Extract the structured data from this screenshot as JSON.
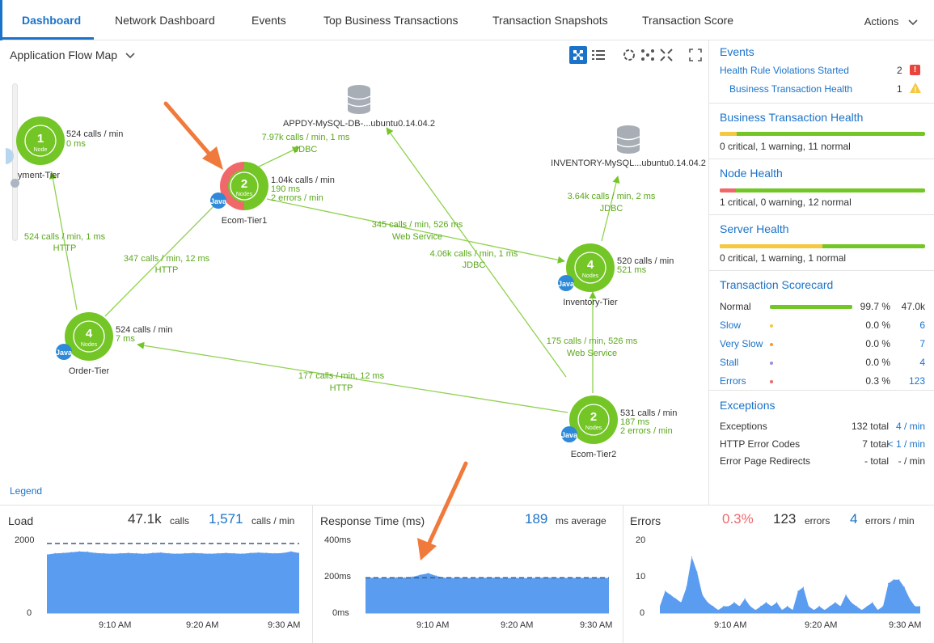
{
  "tabs": [
    {
      "label": "Dashboard",
      "active": true
    },
    {
      "label": "Network Dashboard"
    },
    {
      "label": "Events"
    },
    {
      "label": "Top Business Transactions"
    },
    {
      "label": "Transaction Snapshots"
    },
    {
      "label": "Transaction Score"
    }
  ],
  "actions_label": "Actions",
  "flow_map": {
    "title": "Application Flow Map",
    "legend": "Legend",
    "nodes": [
      {
        "id": "payment",
        "name": "yment-Tier",
        "count": "1",
        "unit": "Node",
        "stats": [
          "524 calls / min",
          "0 ms"
        ]
      },
      {
        "id": "ecom1",
        "name": "Ecom-Tier1",
        "count": "2",
        "unit": "Nodes",
        "stats": [
          "1.04k calls / min",
          "190 ms",
          "2 errors / min"
        ],
        "java": "Java"
      },
      {
        "id": "order",
        "name": "Order-Tier",
        "count": "4",
        "unit": "Nodes",
        "stats": [
          "524 calls / min",
          "7 ms"
        ],
        "java": "Java"
      },
      {
        "id": "inventory",
        "name": "Inventory-Tier",
        "count": "4",
        "unit": "Nodes",
        "stats": [
          "520 calls / min",
          "521 ms"
        ],
        "java": "Java"
      },
      {
        "id": "ecom2",
        "name": "Ecom-Tier2",
        "count": "2",
        "unit": "Nodes",
        "stats": [
          "531 calls / min",
          "187 ms",
          "2 errors / min"
        ],
        "java": "Java"
      }
    ],
    "databases": [
      {
        "id": "appdy",
        "name": "APPDY-MySQL-DB-...ubuntu0.14.04.2"
      },
      {
        "id": "inv",
        "name": "INVENTORY-MySQL...ubuntu0.14.04.2"
      }
    ],
    "edges": [
      {
        "id": "e1",
        "label": "7.97k calls / min, 1 ms",
        "protocol": "JDBC"
      },
      {
        "id": "e2",
        "label": "524 calls / min, 1 ms",
        "protocol": "HTTP"
      },
      {
        "id": "e3",
        "label": "347 calls / min, 12 ms",
        "protocol": "HTTP"
      },
      {
        "id": "e4",
        "label": "345 calls / min, 526 ms",
        "protocol": "Web Service"
      },
      {
        "id": "e5",
        "label": "4.06k calls / min, 1 ms",
        "protocol": "JDBC"
      },
      {
        "id": "e6",
        "label": "3.64k calls / min, 2 ms",
        "protocol": "JDBC"
      },
      {
        "id": "e7",
        "label": "175 calls / min, 526 ms",
        "protocol": "Web Service"
      },
      {
        "id": "e8",
        "label": "177 calls / min, 12 ms",
        "protocol": "HTTP"
      }
    ]
  },
  "events": {
    "title": "Events",
    "rows": [
      {
        "label": "Health Rule Violations Started",
        "count": "2"
      },
      {
        "label": "Business Transaction Health",
        "count": "1"
      }
    ]
  },
  "bt_health": {
    "title": "Business Transaction Health",
    "summary": "0 critical, 1 warning, 11 normal",
    "critical": 0,
    "warning": 1,
    "normal": 11
  },
  "node_health": {
    "title": "Node Health",
    "summary": "1 critical, 0 warning, 12 normal",
    "critical": 1,
    "warning": 0,
    "normal": 12
  },
  "server_health": {
    "title": "Server Health",
    "summary": "0 critical, 1 warning, 1 normal",
    "critical": 0,
    "warning": 1,
    "normal": 1
  },
  "scorecard": {
    "title": "Transaction Scorecard",
    "rows": [
      {
        "label": "Normal",
        "pct": "99.7 %",
        "count": "47.0k",
        "fraction": 0.997
      },
      {
        "label": "Slow",
        "pct": "0.0 %",
        "count": "6"
      },
      {
        "label": "Very Slow",
        "pct": "0.0 %",
        "count": "7"
      },
      {
        "label": "Stall",
        "pct": "0.0 %",
        "count": "4"
      },
      {
        "label": "Errors",
        "pct": "0.3 %",
        "count": "123"
      }
    ]
  },
  "exceptions": {
    "title": "Exceptions",
    "rows": [
      {
        "label": "Exceptions",
        "total": "132 total",
        "rate": "4 / min"
      },
      {
        "label": "HTTP Error Codes",
        "total": "7 total",
        "rate": "< 1 / min"
      },
      {
        "label": "Error Page Redirects",
        "total": "- total",
        "rate": "- / min"
      }
    ]
  },
  "colors": {
    "accent": "#1a73c9",
    "node_green": "#74c627",
    "error_red": "#f0686a",
    "warning_yellow": "#f5c842",
    "chart_blue": "#5a9cf0"
  },
  "chart_data": [
    {
      "type": "area",
      "title": "Load",
      "summary_value": "47.1k",
      "summary_unit": "calls",
      "rate_value": "1,571",
      "rate_unit": "calls / min",
      "ylim": [
        0,
        2000
      ],
      "yticks": [
        "2000",
        "0"
      ],
      "xticks": [
        "9:10 AM",
        "9:20 AM",
        "9:30 AM"
      ],
      "baseline": 1850,
      "values": [
        1560,
        1590,
        1600,
        1620,
        1640,
        1630,
        1600,
        1590,
        1580,
        1590,
        1600,
        1590,
        1580,
        1600,
        1610,
        1590,
        1580,
        1590,
        1600,
        1590,
        1580,
        1590,
        1600,
        1590,
        1580,
        1600,
        1610,
        1600,
        1590,
        1600,
        1640,
        1600
      ]
    },
    {
      "type": "area",
      "title": "Response Time (ms)",
      "summary_value": "189",
      "summary_unit": "ms average",
      "ylim": [
        0,
        400
      ],
      "yticks": [
        "400ms",
        "200ms",
        "0ms"
      ],
      "xticks": [
        "9:10 AM",
        "9:20 AM",
        "9:30 AM"
      ],
      "baseline": 190,
      "values": [
        190,
        190,
        188,
        189,
        191,
        190,
        195,
        205,
        214,
        200,
        190,
        189,
        190,
        188,
        189,
        190,
        191,
        190,
        189,
        190,
        188,
        189,
        190,
        191,
        190,
        189,
        190,
        189,
        190,
        190,
        190,
        189
      ]
    },
    {
      "type": "area",
      "title": "Errors",
      "pct_value": "0.3%",
      "summary_value": "123",
      "summary_unit": "errors",
      "rate_value": "4",
      "rate_unit": "errors / min",
      "ylim": [
        0,
        20
      ],
      "yticks": [
        "20",
        "10",
        "0"
      ],
      "xticks": [
        "9:10 AM",
        "9:20 AM",
        "9:30 AM"
      ],
      "values": [
        2,
        6,
        5,
        4,
        3,
        7,
        15,
        11,
        5,
        3,
        2,
        1,
        2,
        2,
        3,
        2,
        4,
        2,
        1,
        2,
        3,
        2,
        3,
        1,
        2,
        1,
        6,
        7,
        2,
        1,
        2,
        1,
        2,
        3,
        2,
        5,
        3,
        2,
        1,
        2,
        3,
        1,
        2,
        8,
        9,
        9,
        7,
        4,
        2,
        2
      ]
    }
  ]
}
